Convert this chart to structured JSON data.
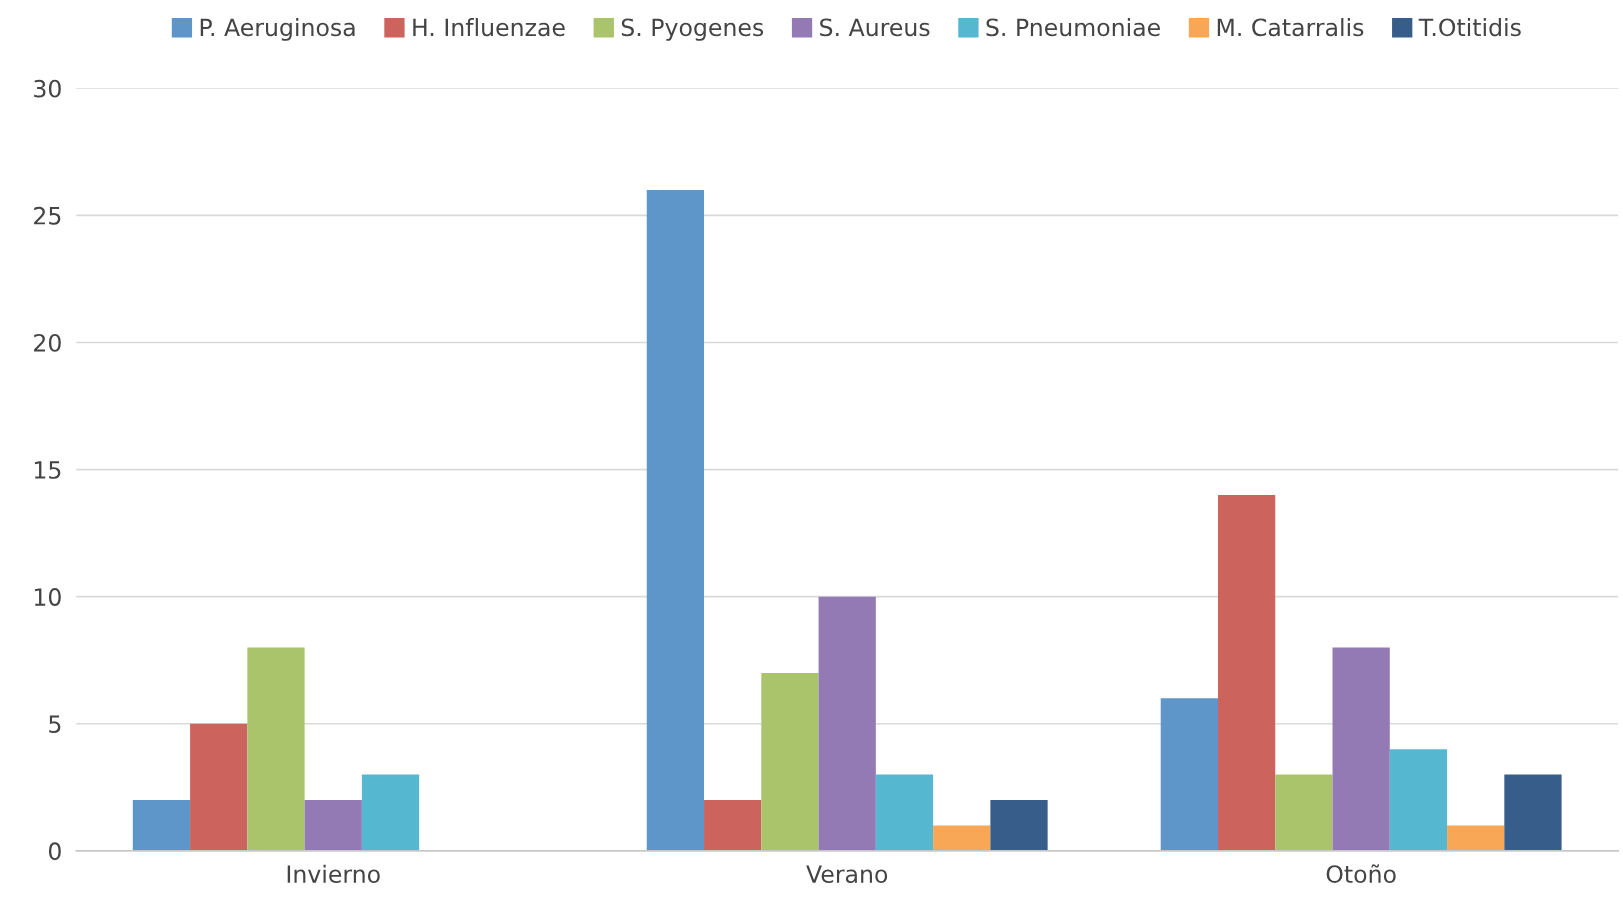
{
  "chart_data": {
    "type": "bar",
    "categories": [
      "Invierno",
      "Verano",
      "Otoño"
    ],
    "series": [
      {
        "name": "P. Aeruginosa",
        "color": "#5f96c9",
        "values": [
          2,
          26,
          6
        ]
      },
      {
        "name": "H. Influenzae",
        "color": "#cd635d",
        "values": [
          5,
          2,
          14
        ]
      },
      {
        "name": "S. Pyogenes",
        "color": "#a9c46b",
        "values": [
          8,
          7,
          3
        ]
      },
      {
        "name": "S. Aureus",
        "color": "#937ab4",
        "values": [
          2,
          10,
          8
        ]
      },
      {
        "name": "S. Pneumoniae",
        "color": "#55b7d0",
        "values": [
          3,
          3,
          4
        ]
      },
      {
        "name": "M. Catarralis",
        "color": "#f7a756",
        "values": [
          null,
          1,
          1
        ]
      },
      {
        "name": "T.Otitidis",
        "color": "#375e8a",
        "values": [
          null,
          2,
          3
        ]
      }
    ],
    "ylim": [
      0,
      30
    ],
    "yticks": [
      0,
      5,
      10,
      15,
      20,
      25,
      30
    ],
    "grid": "y",
    "legend": "top"
  }
}
